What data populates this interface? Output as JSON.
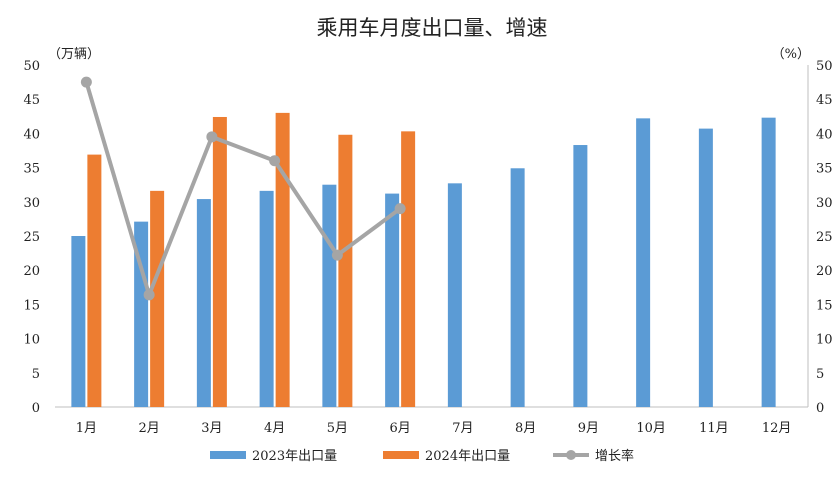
{
  "chart_data": {
    "type": "bar",
    "title": "乘用车月度出口量、增速",
    "left_unit": "（万辆）",
    "right_unit": "（%）",
    "categories": [
      "1月",
      "2月",
      "3月",
      "4月",
      "5月",
      "6月",
      "7月",
      "8月",
      "9月",
      "10月",
      "11月",
      "12月"
    ],
    "ylim": [
      0,
      50
    ],
    "y2lim": [
      0,
      50
    ],
    "yticks": [
      "0",
      "5",
      "10",
      "15",
      "20",
      "25",
      "30",
      "35",
      "40",
      "45",
      "50"
    ],
    "series": [
      {
        "name": "2023年出口量",
        "type": "bar",
        "axis": "left",
        "color": "#5b9bd5",
        "values": [
          25.0,
          27.1,
          30.4,
          31.6,
          32.5,
          31.2,
          32.7,
          34.9,
          38.3,
          42.2,
          40.7,
          42.3
        ]
      },
      {
        "name": "2024年出口量",
        "type": "bar",
        "axis": "left",
        "color": "#ed7d31",
        "values": [
          36.9,
          31.6,
          42.4,
          43.0,
          39.8,
          40.3,
          null,
          null,
          null,
          null,
          null,
          null
        ]
      },
      {
        "name": "增长率",
        "type": "line",
        "axis": "right",
        "color": "#a5a5a5",
        "values": [
          47.5,
          16.4,
          39.5,
          36.0,
          22.2,
          29.0,
          null,
          null,
          null,
          null,
          null,
          null
        ]
      }
    ],
    "legend_position": "bottom"
  }
}
